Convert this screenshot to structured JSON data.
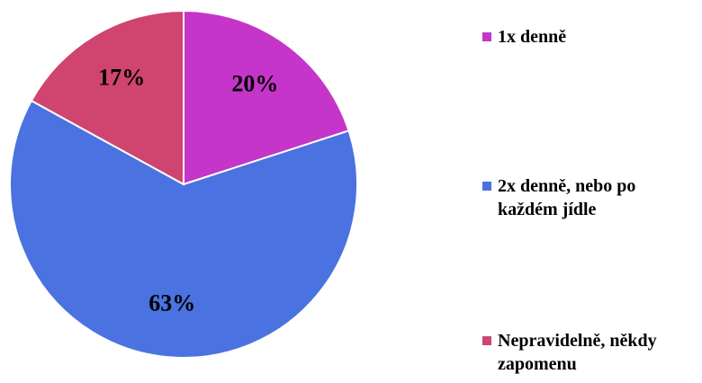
{
  "chart_data": {
    "type": "pie",
    "categories": [
      "1x denně",
      "2x denně, nebo po každém jídle",
      "Nepravidelně, někdy zapomenu"
    ],
    "values": [
      20,
      63,
      17
    ],
    "value_labels": [
      "20%",
      "63%",
      "17%"
    ],
    "colors": [
      "#c535c9",
      "#4a72e0",
      "#cf4570"
    ]
  }
}
